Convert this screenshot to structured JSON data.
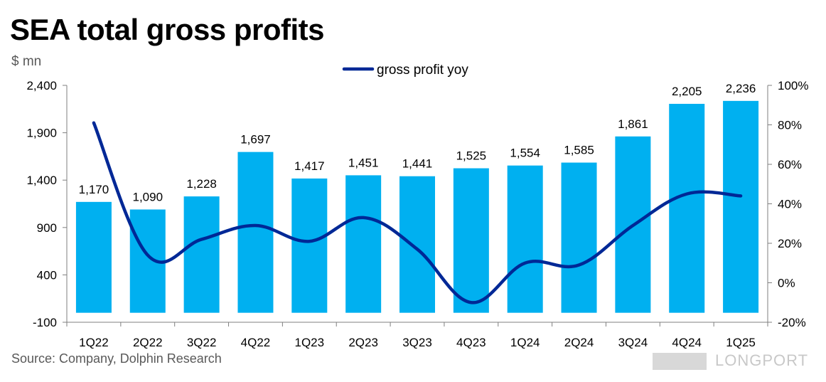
{
  "title": "SEA total gross profits",
  "unit_label": "$ mn",
  "source": "Source: Company, Dolphin Research",
  "brand": "LONGPORT",
  "colors": {
    "bar": "#00b0f0",
    "line": "#002896",
    "axis": "#7f7f7f"
  },
  "chart_data": {
    "type": "bar+line",
    "categories": [
      "1Q22",
      "2Q22",
      "3Q22",
      "4Q22",
      "1Q23",
      "2Q23",
      "3Q23",
      "4Q23",
      "1Q24",
      "2Q24",
      "3Q24",
      "4Q24",
      "1Q25"
    ],
    "series": [
      {
        "type": "bar",
        "axis": "left",
        "values": [
          1170,
          1090,
          1228,
          1697,
          1417,
          1451,
          1441,
          1525,
          1554,
          1585,
          1861,
          2205,
          2236
        ],
        "labels": [
          "1,170",
          "1,090",
          "1,228",
          "1,697",
          "1,417",
          "1,451",
          "1,441",
          "1,525",
          "1,554",
          "1,585",
          "1,861",
          "2,205",
          "2,236"
        ]
      },
      {
        "type": "line",
        "name": "gross profit yoy",
        "axis": "right",
        "values": [
          0.81,
          0.14,
          0.22,
          0.29,
          0.21,
          0.33,
          0.17,
          -0.1,
          0.1,
          0.09,
          0.29,
          0.45,
          0.44
        ]
      }
    ],
    "left_axis": {
      "min": -100,
      "max": 2400,
      "ticks": [
        -100,
        400,
        900,
        1400,
        1900,
        2400
      ],
      "tick_labels": [
        "-100",
        "400",
        "900",
        "1,400",
        "1,900",
        "2,400"
      ]
    },
    "right_axis": {
      "min": -0.2,
      "max": 1.0,
      "ticks": [
        -0.2,
        0,
        0.2,
        0.4,
        0.6,
        0.8,
        1.0
      ],
      "tick_labels": [
        "-20%",
        "0%",
        "20%",
        "40%",
        "60%",
        "80%",
        "100%"
      ]
    },
    "legend_position": "top-center",
    "grid": false
  }
}
